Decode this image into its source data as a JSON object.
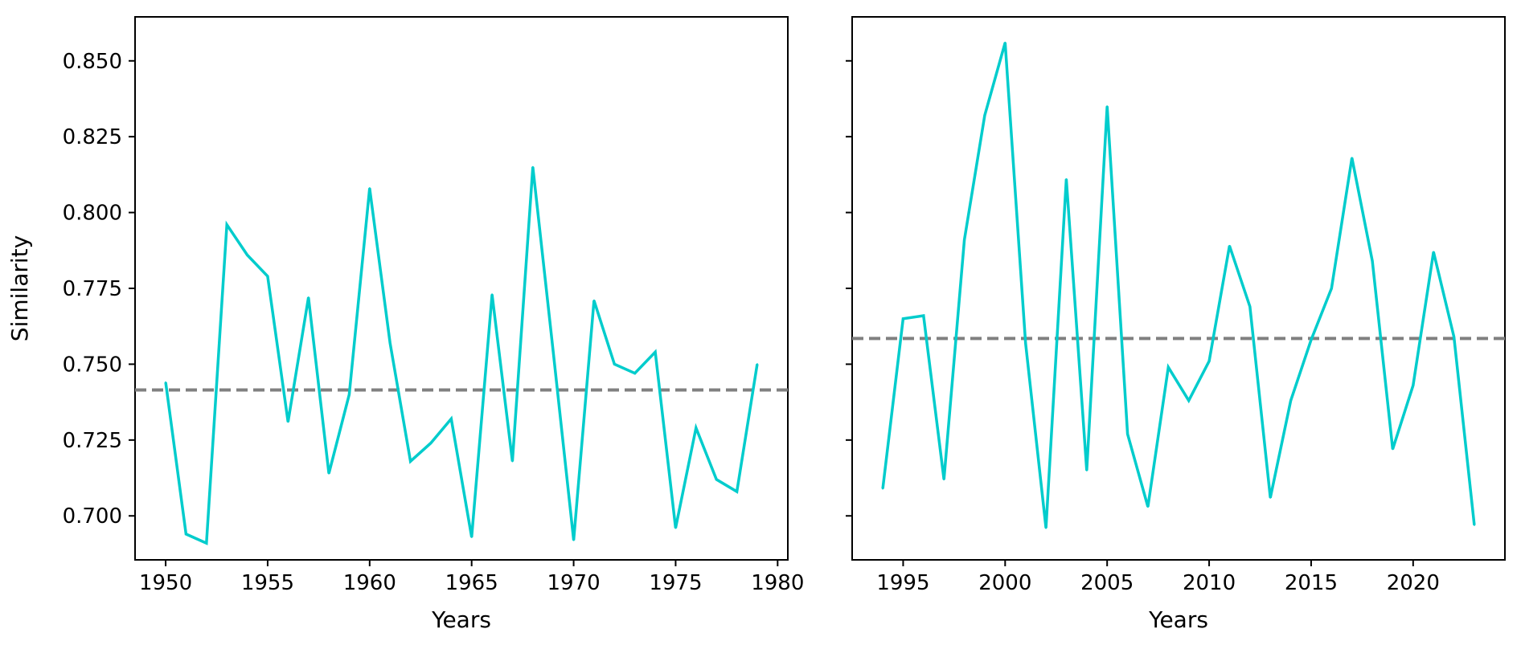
{
  "chart_data": [
    {
      "type": "line",
      "xlabel": "Years",
      "ylabel": "Similarity",
      "xlim": [
        1948.5,
        1980.5
      ],
      "ylim": [
        0.6855,
        0.8645
      ],
      "xticks": [
        1950,
        1955,
        1960,
        1965,
        1970,
        1975,
        1980
      ],
      "yticks": [
        0.7,
        0.725,
        0.75,
        0.775,
        0.8,
        0.825,
        0.85
      ],
      "ytick_labels": [
        "0.700",
        "0.725",
        "0.750",
        "0.775",
        "0.800",
        "0.825",
        "0.850"
      ],
      "show_yticklabels": true,
      "grid": false,
      "series": [
        {
          "color": "#00cccc",
          "x": [
            1950,
            1951,
            1952,
            1953,
            1954,
            1955,
            1956,
            1957,
            1958,
            1959,
            1960,
            1961,
            1962,
            1963,
            1964,
            1965,
            1966,
            1967,
            1968,
            1969,
            1970,
            1971,
            1972,
            1973,
            1974,
            1975,
            1976,
            1977,
            1978,
            1979
          ],
          "y": [
            0.744,
            0.694,
            0.691,
            0.796,
            0.786,
            0.779,
            0.731,
            0.772,
            0.714,
            0.74,
            0.808,
            0.757,
            0.718,
            0.724,
            0.732,
            0.693,
            0.773,
            0.718,
            0.815,
            0.754,
            0.692,
            0.771,
            0.75,
            0.747,
            0.754,
            0.696,
            0.729,
            0.712,
            0.708,
            0.75
          ]
        }
      ],
      "hline": {
        "y": 0.7415,
        "color": "#808080",
        "style": "dashed"
      }
    },
    {
      "type": "line",
      "xlabel": "Years",
      "ylabel": "",
      "xlim": [
        1992.5,
        2024.5
      ],
      "ylim": [
        0.6855,
        0.8645
      ],
      "xticks": [
        1995,
        2000,
        2005,
        2010,
        2015,
        2020
      ],
      "yticks": [
        0.7,
        0.725,
        0.75,
        0.775,
        0.8,
        0.825,
        0.85
      ],
      "ytick_labels": [],
      "show_yticklabels": false,
      "grid": false,
      "series": [
        {
          "color": "#00cccc",
          "x": [
            1994,
            1995,
            1996,
            1997,
            1998,
            1999,
            2000,
            2001,
            2002,
            2003,
            2004,
            2005,
            2006,
            2007,
            2008,
            2009,
            2010,
            2011,
            2012,
            2013,
            2014,
            2015,
            2016,
            2017,
            2018,
            2019,
            2020,
            2021,
            2022,
            2023
          ],
          "y": [
            0.709,
            0.765,
            0.766,
            0.712,
            0.791,
            0.832,
            0.856,
            0.757,
            0.696,
            0.811,
            0.715,
            0.835,
            0.727,
            0.703,
            0.749,
            0.738,
            0.751,
            0.789,
            0.769,
            0.706,
            0.738,
            0.758,
            0.775,
            0.818,
            0.784,
            0.722,
            0.743,
            0.787,
            0.759,
            0.697
          ]
        }
      ],
      "hline": {
        "y": 0.7585,
        "color": "#808080",
        "style": "dashed"
      }
    }
  ]
}
